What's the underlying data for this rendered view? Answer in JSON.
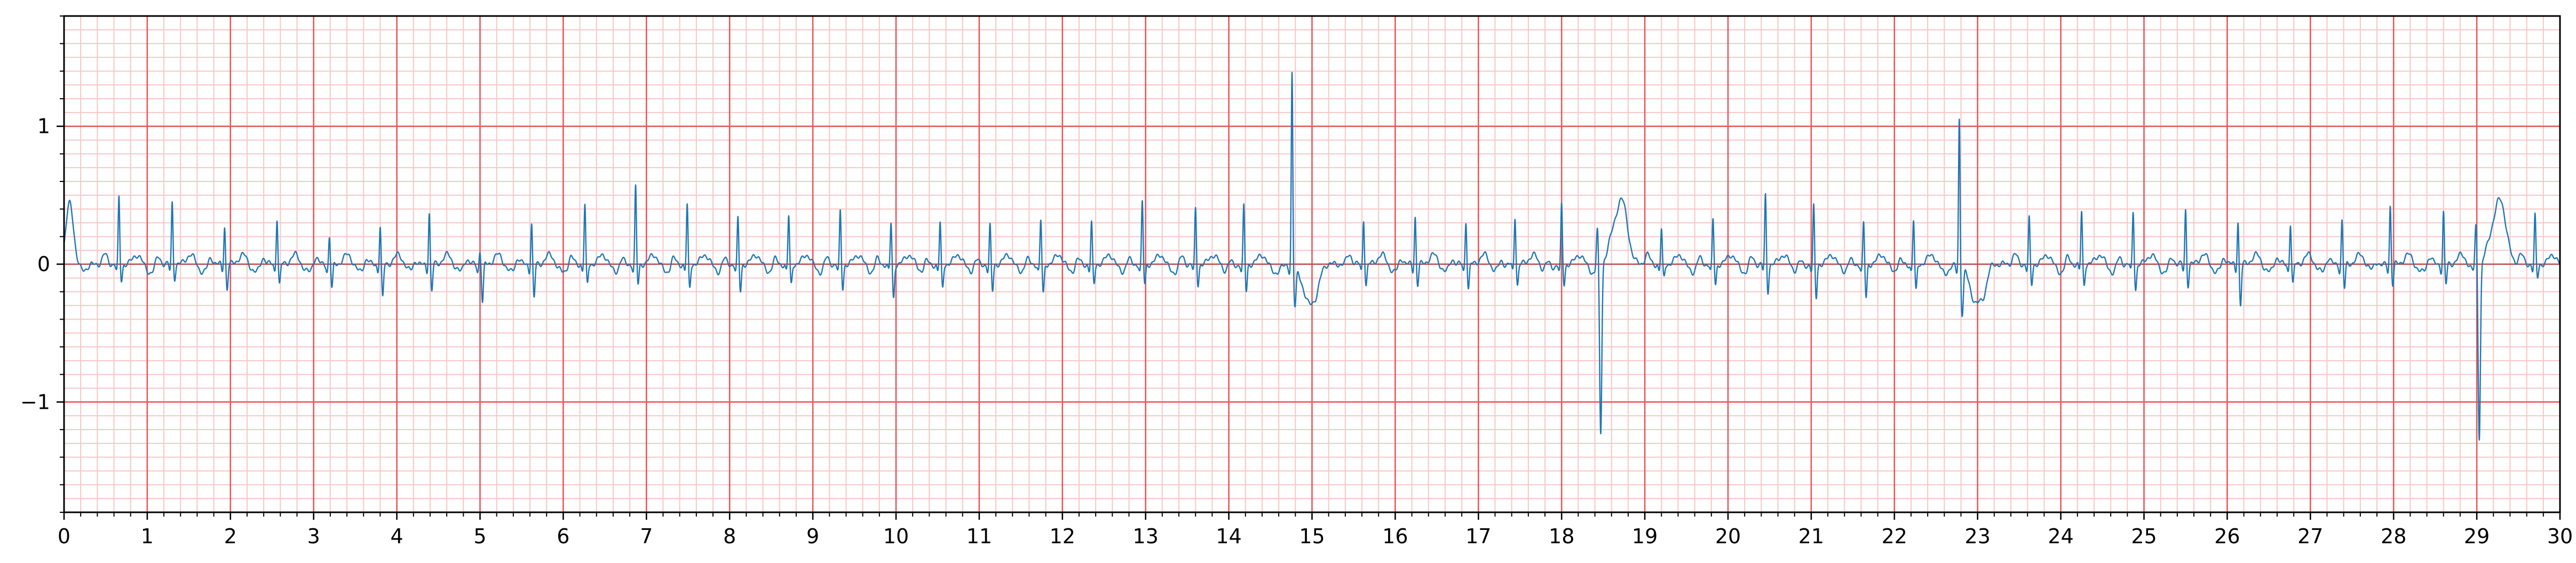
{
  "chart_data": {
    "type": "line",
    "title": "",
    "xlabel": "",
    "ylabel": "",
    "xlim": [
      0,
      30
    ],
    "ylim": [
      -1.8,
      1.8
    ],
    "x_ticks": [
      0,
      1,
      2,
      3,
      4,
      5,
      6,
      7,
      8,
      9,
      10,
      11,
      12,
      13,
      14,
      15,
      16,
      17,
      18,
      19,
      20,
      21,
      22,
      23,
      24,
      25,
      26,
      27,
      28,
      29,
      30
    ],
    "x_tick_labels": [
      "0",
      "1",
      "2",
      "3",
      "4",
      "5",
      "6",
      "7",
      "8",
      "9",
      "10",
      "11",
      "12",
      "13",
      "14",
      "15",
      "16",
      "17",
      "18",
      "19",
      "20",
      "21",
      "22",
      "23",
      "24",
      "25",
      "26",
      "27",
      "28",
      "29",
      "30"
    ],
    "y_ticks": [
      -1,
      0,
      1
    ],
    "y_tick_labels": [
      "−1",
      "0",
      "1"
    ],
    "grid": {
      "major": true,
      "minor": true,
      "x_major_step": 1,
      "x_minor_step": 0.2,
      "y_major_step": 1,
      "y_minor_step": 0.1
    },
    "legend": "none",
    "colors": {
      "major_grid": "#e8585c",
      "minor_grid": "#f7c6c6",
      "signal": "#1f77b4",
      "axes": "#000000"
    },
    "series": [
      {
        "beats": [
          {
            "t": 0.02,
            "r": 0.45,
            "s": -0.05,
            "type": "w"
          },
          {
            "t": 0.66,
            "r": 0.48,
            "s": -0.12
          },
          {
            "t": 1.3,
            "r": 0.45,
            "s": -0.1
          },
          {
            "t": 1.93,
            "r": 0.28,
            "s": -0.18
          },
          {
            "t": 2.56,
            "r": 0.34,
            "s": -0.15
          },
          {
            "t": 3.19,
            "r": 0.2,
            "s": -0.18
          },
          {
            "t": 3.8,
            "r": 0.28,
            "s": -0.25
          },
          {
            "t": 4.39,
            "r": 0.38,
            "s": -0.2
          },
          {
            "t": 5.0,
            "r": 0.1,
            "s": -0.28
          },
          {
            "t": 5.62,
            "r": 0.3,
            "s": -0.25
          },
          {
            "t": 6.26,
            "r": 0.43,
            "s": -0.15
          },
          {
            "t": 6.87,
            "r": 0.56,
            "s": -0.15
          },
          {
            "t": 7.49,
            "r": 0.43,
            "s": -0.18
          },
          {
            "t": 8.1,
            "r": 0.33,
            "s": -0.2
          },
          {
            "t": 8.71,
            "r": 0.35,
            "s": -0.15
          },
          {
            "t": 9.33,
            "r": 0.38,
            "s": -0.18
          },
          {
            "t": 9.94,
            "r": 0.3,
            "s": -0.25
          },
          {
            "t": 10.53,
            "r": 0.3,
            "s": -0.18
          },
          {
            "t": 11.13,
            "r": 0.28,
            "s": -0.2
          },
          {
            "t": 11.74,
            "r": 0.32,
            "s": -0.22
          },
          {
            "t": 12.35,
            "r": 0.3,
            "s": -0.15
          },
          {
            "t": 12.96,
            "r": 0.45,
            "s": -0.15
          },
          {
            "t": 13.6,
            "r": 0.4,
            "s": -0.15
          },
          {
            "t": 14.18,
            "r": 0.42,
            "s": -0.2
          },
          {
            "t": 14.76,
            "r": 1.4,
            "s": -0.3,
            "type": "pvc"
          },
          {
            "t": 15.62,
            "r": 0.33,
            "s": -0.15
          },
          {
            "t": 16.24,
            "r": 0.35,
            "s": -0.15
          },
          {
            "t": 16.85,
            "r": 0.32,
            "s": -0.18
          },
          {
            "t": 17.44,
            "r": 0.35,
            "s": -0.15
          },
          {
            "t": 18.0,
            "r": 0.43,
            "s": -0.15
          },
          {
            "t": 18.47,
            "r": 0.3,
            "s": -1.22,
            "type": "pvc2"
          },
          {
            "t": 19.2,
            "r": 0.25,
            "s": -0.1
          },
          {
            "t": 19.82,
            "r": 0.32,
            "s": -0.15
          },
          {
            "t": 20.45,
            "r": 0.5,
            "s": -0.2
          },
          {
            "t": 21.03,
            "r": 0.42,
            "s": -0.25
          },
          {
            "t": 21.63,
            "r": 0.3,
            "s": -0.25
          },
          {
            "t": 22.23,
            "r": 0.32,
            "s": -0.2
          },
          {
            "t": 22.78,
            "r": 1.08,
            "s": -0.35,
            "type": "pvc"
          },
          {
            "t": 23.62,
            "r": 0.33,
            "s": -0.15
          },
          {
            "t": 24.25,
            "r": 0.38,
            "s": -0.15
          },
          {
            "t": 24.87,
            "r": 0.38,
            "s": -0.18
          },
          {
            "t": 25.5,
            "r": 0.4,
            "s": -0.15
          },
          {
            "t": 26.13,
            "r": 0.32,
            "s": -0.3
          },
          {
            "t": 26.76,
            "r": 0.3,
            "s": -0.15
          },
          {
            "t": 27.38,
            "r": 0.32,
            "s": -0.18
          },
          {
            "t": 27.96,
            "r": 0.43,
            "s": -0.15
          },
          {
            "t": 28.6,
            "r": 0.38,
            "s": -0.15
          },
          {
            "t": 29.03,
            "r": 0.35,
            "s": -1.22,
            "type": "pvc2"
          },
          {
            "t": 29.7,
            "r": 0.35,
            "s": -0.1
          }
        ]
      }
    ]
  }
}
